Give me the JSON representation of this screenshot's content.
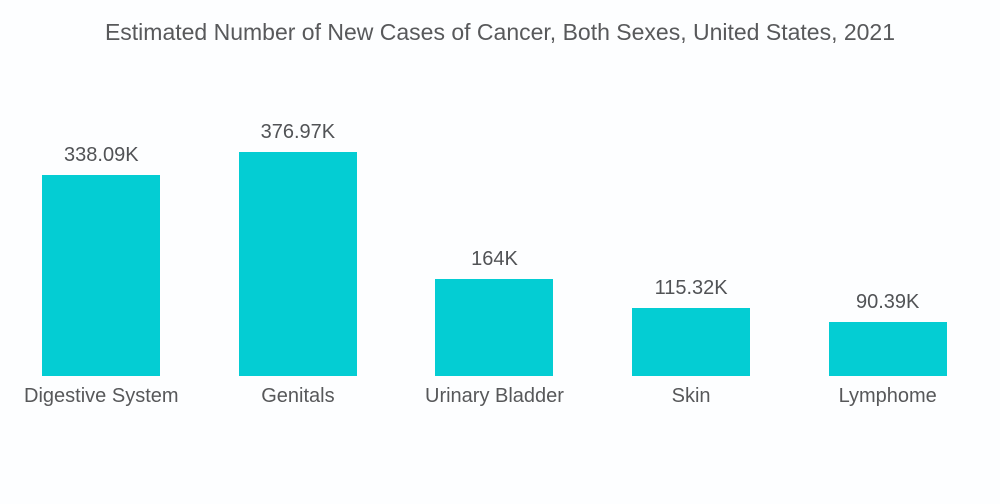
{
  "title": "Estimated Number of New Cases of Cancer, Both Sexes, United States, 2021",
  "colors": {
    "bar": "#04cdd3",
    "title_text": "#58595b",
    "label_text": "#515356",
    "background": "#fdfeff"
  },
  "chart_data": {
    "type": "bar",
    "title": "Estimated Number of New Cases of Cancer, Both Sexes, United States, 2021",
    "categories": [
      "Digestive System",
      "Genitals",
      "Urinary Bladder",
      "Skin",
      "Lymphome"
    ],
    "values": [
      338.09,
      376.97,
      164,
      115.32,
      90.39
    ],
    "value_labels": [
      "338.09K",
      "376.97K",
      "164K",
      "115.32K",
      "90.39K"
    ],
    "unit": "K",
    "xlabel": "",
    "ylabel": "",
    "ylim": [
      0,
      400
    ],
    "grid": false,
    "legend_position": "none",
    "axes_visible": false,
    "bar_color": "#04cdd3"
  }
}
